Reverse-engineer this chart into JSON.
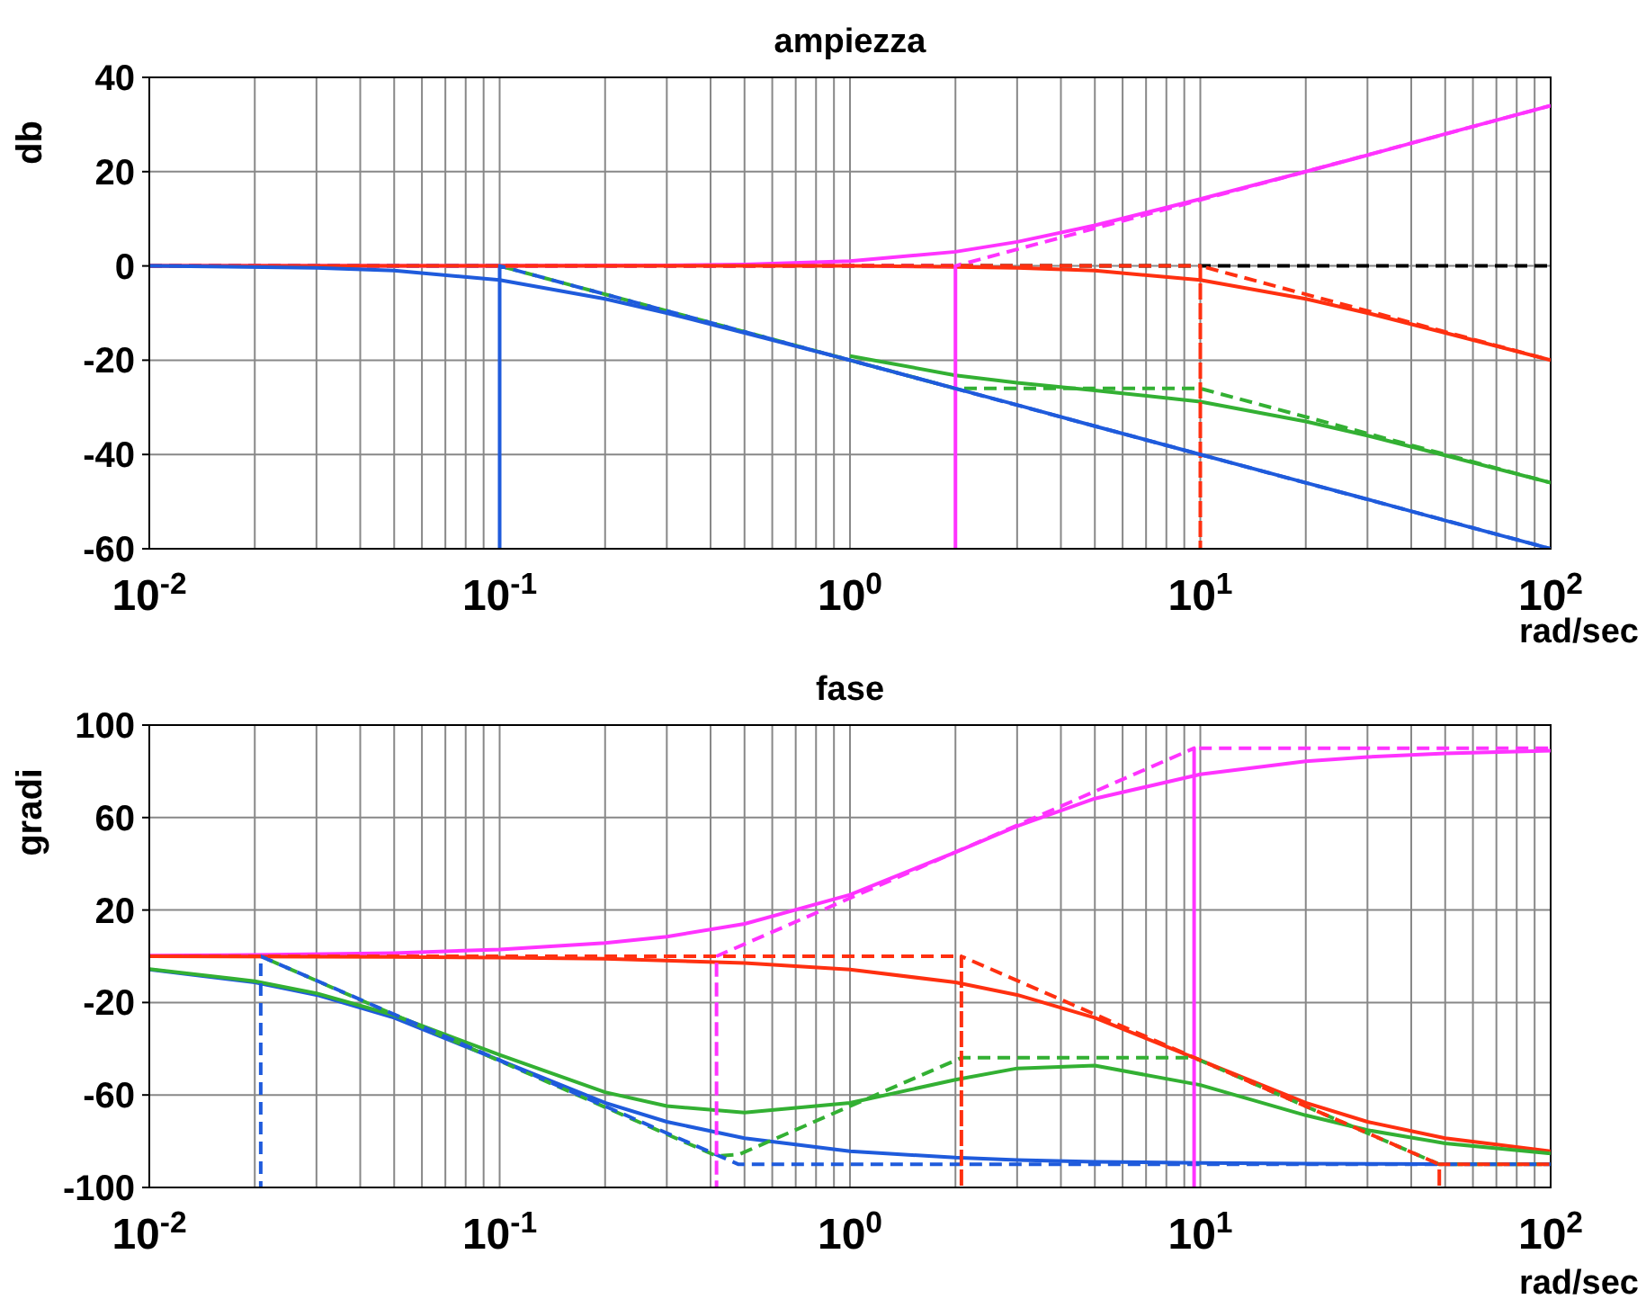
{
  "chart_data": [
    {
      "type": "line",
      "title": "ampiezza",
      "xlabel": "rad/sec",
      "ylabel": "db",
      "log": "x",
      "grid": true,
      "xlim": [
        0.01,
        100
      ],
      "ylim": [
        -60,
        40
      ],
      "xticks": [
        {
          "value": 0.01,
          "label": "10$^{-2}$"
        },
        {
          "value": 0.02,
          "label": null
        },
        {
          "value": 0.03,
          "label": null
        },
        {
          "value": 0.04,
          "label": null
        },
        {
          "value": 0.05,
          "label": null
        },
        {
          "value": 0.06,
          "label": null
        },
        {
          "value": 0.07,
          "label": null
        },
        {
          "value": 0.08,
          "label": null
        },
        {
          "value": 0.09,
          "label": null
        },
        {
          "value": 0.1,
          "label": "10$^{-1}$"
        },
        {
          "value": 0.2,
          "label": null
        },
        {
          "value": 0.3,
          "label": null
        },
        {
          "value": 0.4,
          "label": null
        },
        {
          "value": 0.5,
          "label": null
        },
        {
          "value": 0.6,
          "label": null
        },
        {
          "value": 0.7,
          "label": null
        },
        {
          "value": 0.8,
          "label": null
        },
        {
          "value": 0.9,
          "label": null
        },
        {
          "value": 1,
          "label": "10$^{0}$"
        },
        {
          "value": 2,
          "label": null
        },
        {
          "value": 3,
          "label": null
        },
        {
          "value": 4,
          "label": null
        },
        {
          "value": 5,
          "label": null
        },
        {
          "value": 6,
          "label": null
        },
        {
          "value": 7,
          "label": null
        },
        {
          "value": 8,
          "label": null
        },
        {
          "value": 9,
          "label": null
        },
        {
          "value": 10,
          "label": "10$^{1}$"
        },
        {
          "value": 20,
          "label": null
        },
        {
          "value": 30,
          "label": null
        },
        {
          "value": 40,
          "label": null
        },
        {
          "value": 50,
          "label": null
        },
        {
          "value": 60,
          "label": null
        },
        {
          "value": 70,
          "label": null
        },
        {
          "value": 80,
          "label": null
        },
        {
          "value": 90,
          "label": null
        },
        {
          "value": 100,
          "label": "10$^{2}$"
        }
      ],
      "yticks": [
        -60,
        -40,
        -20,
        0,
        20,
        40
      ],
      "ref_lines": [
        {
          "axis": "y",
          "value": 0,
          "label": null,
          "color": "#000000",
          "line_style": "dashed"
        }
      ],
      "series": [
        {
          "type": "line",
          "color": "#ff33ff",
          "line_style": "solid",
          "x": [
            0.01,
            0.1,
            0.3,
            0.5,
            1,
            2,
            3,
            5,
            10,
            20,
            30,
            50,
            100
          ],
          "values": [
            0,
            0,
            0.1,
            0.3,
            1.0,
            3.0,
            5.1,
            8.6,
            14.2,
            20.0,
            23.5,
            28.0,
            34.0
          ]
        },
        {
          "type": "line",
          "color": "#ff3010",
          "line_style": "solid",
          "x": [
            0.01,
            0.5,
            1,
            2,
            3,
            5,
            10,
            20,
            30,
            50,
            100
          ],
          "values": [
            0,
            0,
            0,
            -0.2,
            -0.4,
            -1.0,
            -3.0,
            -7.0,
            -10.0,
            -14.2,
            -20.0
          ]
        },
        {
          "type": "line",
          "color": "#33b033",
          "line_style": "solid",
          "x": [
            1,
            2,
            3,
            5,
            10,
            20,
            30,
            50,
            100
          ],
          "values": [
            -19.1,
            -23.2,
            -24.8,
            -26.4,
            -28.8,
            -33.0,
            -36.0,
            -40.2,
            -46.0
          ]
        },
        {
          "type": "line",
          "color": "#33b033",
          "line_style": "dashed",
          "x": [
            0.01,
            0.1,
            2,
            10,
            100
          ],
          "values": [
            0,
            0,
            -26,
            -26,
            -46
          ]
        },
        {
          "type": "line",
          "color": "#1f5bdc",
          "line_style": "dashed",
          "x": [
            0.01,
            0.1,
            0.1,
            0.1,
            100
          ],
          "values": [
            0,
            0,
            -60,
            0,
            -60
          ]
        },
        {
          "type": "line",
          "color": "#ff33ff",
          "line_style": "dashed",
          "x": [
            0.01,
            2,
            2,
            2,
            100
          ],
          "values": [
            0,
            0,
            -60,
            0,
            34
          ]
        },
        {
          "type": "line",
          "color": "#ff3010",
          "line_style": "dashed",
          "x": [
            0.01,
            10,
            10,
            10,
            100
          ],
          "values": [
            0,
            0,
            -60,
            0,
            -20
          ]
        },
        {
          "type": "line",
          "color": "#1f5bdc",
          "line_style": "solid",
          "x": [
            0.01,
            0.03,
            0.05,
            0.1,
            0.2,
            0.3,
            0.5,
            1,
            2,
            3,
            5,
            10,
            20,
            30,
            50,
            100
          ],
          "values": [
            0,
            -0.4,
            -1.0,
            -3.0,
            -7.0,
            -10.0,
            -14.2,
            -20.0,
            -26.0,
            -29.5,
            -34.0,
            -40.0,
            -46.0,
            -49.5,
            -54.0,
            -60.0
          ]
        }
      ]
    },
    {
      "type": "line",
      "title": "fase",
      "xlabel": "rad/sec",
      "ylabel": "gradi",
      "log": "x",
      "grid": true,
      "xlim": [
        0.01,
        100
      ],
      "ylim": [
        -100,
        100
      ],
      "xticks": [
        {
          "value": 0.01,
          "label": "10$^{-2}$"
        },
        {
          "value": 0.02,
          "label": null
        },
        {
          "value": 0.03,
          "label": null
        },
        {
          "value": 0.04,
          "label": null
        },
        {
          "value": 0.05,
          "label": null
        },
        {
          "value": 0.06,
          "label": null
        },
        {
          "value": 0.07,
          "label": null
        },
        {
          "value": 0.08,
          "label": null
        },
        {
          "value": 0.09,
          "label": null
        },
        {
          "value": 0.1,
          "label": "10$^{-1}$"
        },
        {
          "value": 0.2,
          "label": null
        },
        {
          "value": 0.3,
          "label": null
        },
        {
          "value": 0.4,
          "label": null
        },
        {
          "value": 0.5,
          "label": null
        },
        {
          "value": 0.6,
          "label": null
        },
        {
          "value": 0.7,
          "label": null
        },
        {
          "value": 0.8,
          "label": null
        },
        {
          "value": 0.9,
          "label": null
        },
        {
          "value": 1,
          "label": "10$^{0}$"
        },
        {
          "value": 2,
          "label": null
        },
        {
          "value": 3,
          "label": null
        },
        {
          "value": 4,
          "label": null
        },
        {
          "value": 5,
          "label": null
        },
        {
          "value": 6,
          "label": null
        },
        {
          "value": 7,
          "label": null
        },
        {
          "value": 8,
          "label": null
        },
        {
          "value": 9,
          "label": null
        },
        {
          "value": 10,
          "label": "10$^{1}$"
        },
        {
          "value": 20,
          "label": null
        },
        {
          "value": 30,
          "label": null
        },
        {
          "value": 40,
          "label": null
        },
        {
          "value": 50,
          "label": null
        },
        {
          "value": 60,
          "label": null
        },
        {
          "value": 70,
          "label": null
        },
        {
          "value": 80,
          "label": null
        },
        {
          "value": 90,
          "label": null
        },
        {
          "value": 100,
          "label": "10$^{2}$"
        }
      ],
      "yticks": [
        -100,
        -60,
        -20,
        20,
        60,
        100
      ],
      "series": [
        {
          "type": "line",
          "color": "#1f5bdc",
          "line_style": "solid",
          "x": [
            0.01,
            0.02,
            0.03,
            0.05,
            0.1,
            0.2,
            0.3,
            0.5,
            1,
            2,
            3,
            5,
            10,
            20,
            50,
            100
          ],
          "values": [
            -5.7,
            -11.3,
            -16.7,
            -26.6,
            -45,
            -63.4,
            -71.6,
            -78.7,
            -84.3,
            -87.1,
            -88.1,
            -88.9,
            -89.4,
            -89.7,
            -89.9,
            -89.9
          ]
        },
        {
          "type": "line",
          "color": "#ff33ff",
          "line_style": "solid",
          "x": [
            0.01,
            0.02,
            0.05,
            0.1,
            0.2,
            0.3,
            0.5,
            1,
            2,
            3,
            5,
            10,
            20,
            30,
            50,
            100
          ],
          "values": [
            0.3,
            0.6,
            1.4,
            2.9,
            5.7,
            8.5,
            14.0,
            26.6,
            45,
            56.3,
            68.2,
            78.7,
            84.3,
            86.2,
            87.7,
            88.9
          ]
        },
        {
          "type": "line",
          "color": "#ff3010",
          "line_style": "solid",
          "x": [
            0.01,
            0.05,
            0.1,
            0.2,
            0.5,
            1,
            2,
            3,
            5,
            10,
            20,
            30,
            50,
            100
          ],
          "values": [
            0,
            -0.3,
            -0.6,
            -1.1,
            -2.9,
            -5.7,
            -11.3,
            -16.7,
            -26.6,
            -45,
            -63.4,
            -71.6,
            -78.7,
            -84.3
          ]
        },
        {
          "type": "line",
          "color": "#33b033",
          "line_style": "solid",
          "x": [
            0.01,
            0.02,
            0.03,
            0.05,
            0.1,
            0.2,
            0.3,
            0.5,
            1,
            2,
            3,
            5,
            10,
            20,
            30,
            50,
            100
          ],
          "values": [
            -5.5,
            -10.8,
            -16.0,
            -25.5,
            -42.7,
            -58.8,
            -64.8,
            -67.6,
            -63.4,
            -53.4,
            -48.5,
            -47.3,
            -55.7,
            -68.8,
            -75.2,
            -80.9,
            -85.3
          ]
        },
        {
          "type": "line",
          "color": "#33b033",
          "line_style": "dashed",
          "x": [
            0.01,
            0.0208,
            0.416,
            0.481,
            2.08,
            9.6,
            48.1,
            100
          ],
          "values": [
            0,
            0,
            -86.4,
            -85.8,
            -43.9,
            -43.9,
            -90,
            -90
          ]
        },
        {
          "type": "line",
          "color": "#1f5bdc",
          "line_style": "dashed",
          "x": [
            0.01,
            0.0208,
            0.0208,
            0.0208,
            0.481,
            100
          ],
          "values": [
            0,
            0,
            -100,
            0,
            -90,
            -90
          ]
        },
        {
          "type": "line",
          "color": "#ff33ff",
          "line_style": "dashed",
          "x": [
            0.01,
            0.416,
            0.416,
            0.416,
            9.6,
            9.6,
            9.6,
            100
          ],
          "values": [
            0,
            0,
            -100,
            0,
            90,
            -100,
            90,
            90
          ]
        },
        {
          "type": "line",
          "color": "#ff3010",
          "line_style": "dashed",
          "x": [
            0.01,
            2.08,
            2.08,
            2.08,
            48.1,
            48.1,
            48.1,
            100
          ],
          "values": [
            0,
            0,
            -100,
            0,
            -90,
            -100,
            -90,
            -90
          ]
        }
      ]
    }
  ]
}
